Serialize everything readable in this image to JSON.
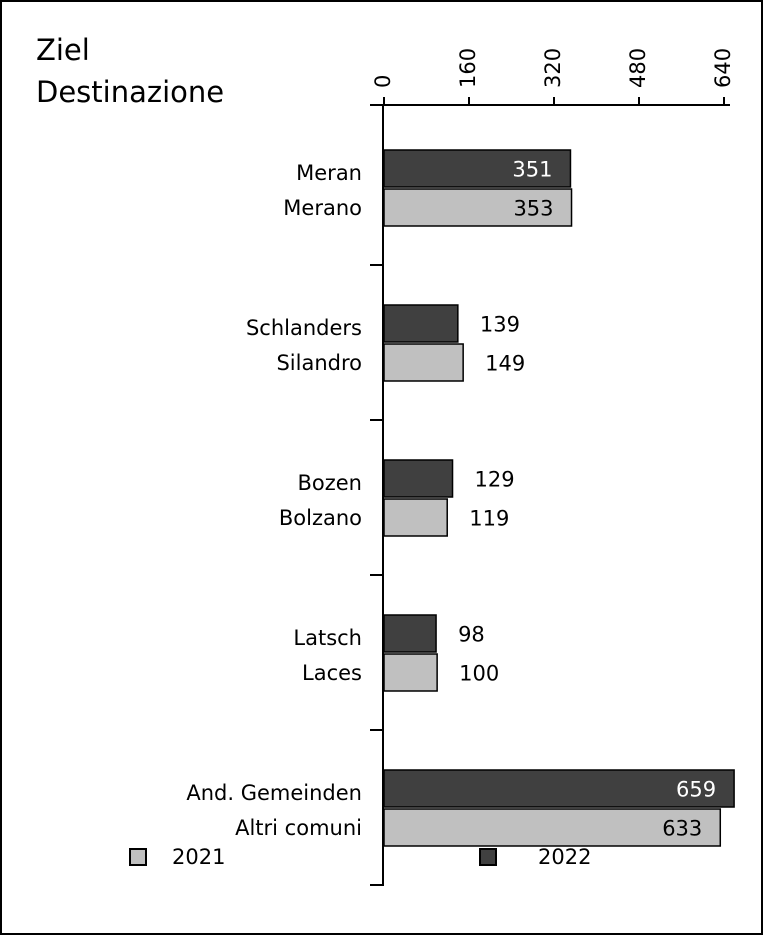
{
  "chart_data": {
    "type": "barh",
    "title": [
      "Ziel",
      "Destinazione"
    ],
    "categories": [
      [
        "Meran",
        "Merano"
      ],
      [
        "Schlanders",
        "Silandro"
      ],
      [
        "Bozen",
        "Bolzano"
      ],
      [
        "Latsch",
        "Laces"
      ],
      [
        "And. Gemeinden",
        "Altri comuni"
      ]
    ],
    "series": [
      {
        "name": "2022",
        "color": "#404040",
        "values": [
          351,
          139,
          129,
          98,
          659
        ]
      },
      {
        "name": "2021",
        "color": "#c0c0c0",
        "values": [
          353,
          149,
          119,
          100,
          633
        ]
      }
    ],
    "xlim": [
      0,
      640
    ],
    "xticks": [
      0,
      160,
      320,
      480,
      640
    ],
    "grid": false
  }
}
